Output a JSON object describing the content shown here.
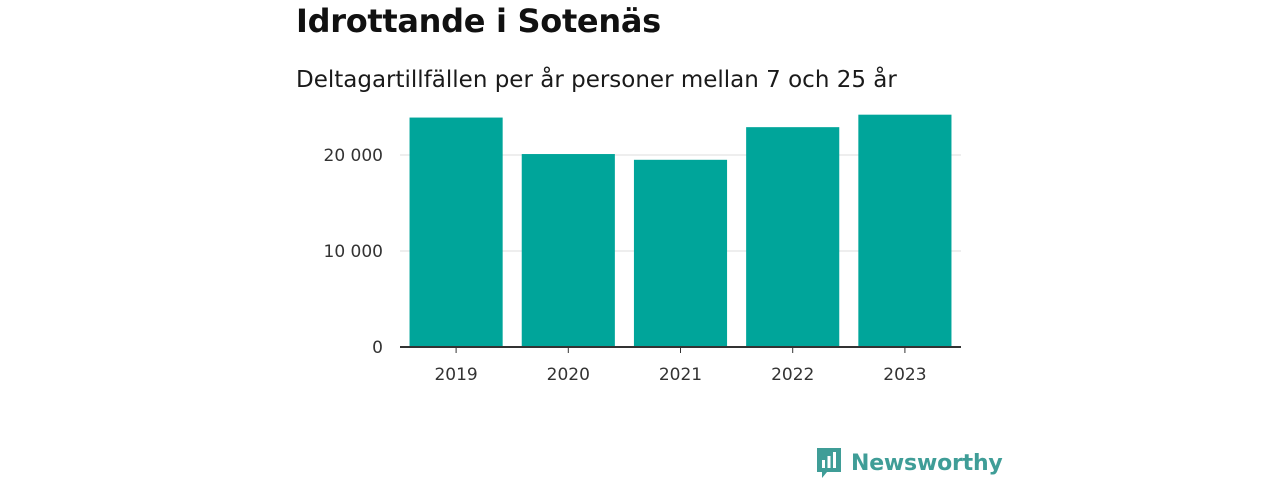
{
  "title": "Idrottande i Sotenäs",
  "subtitle": "Deltagartillfällen per år personer mellan 7 och 25 år",
  "brand": {
    "name": "Newsworthy",
    "icon": "newsworthy-logo-icon",
    "color": "#3f9d97"
  },
  "chart_data": {
    "type": "bar",
    "title": "Idrottande i Sotenäs",
    "subtitle": "Deltagartillfällen per år personer mellan 7 och 25 år",
    "xlabel": "",
    "ylabel": "",
    "categories": [
      "2019",
      "2020",
      "2021",
      "2022",
      "2023"
    ],
    "values": [
      23900,
      20100,
      19500,
      22900,
      24200
    ],
    "ylim": [
      0,
      25000
    ],
    "yticks": [
      0,
      10000,
      20000
    ],
    "ytick_labels": [
      "0",
      "10 000",
      "20 000"
    ],
    "grid": true,
    "bar_color": "#00a59a",
    "legend": "none"
  }
}
